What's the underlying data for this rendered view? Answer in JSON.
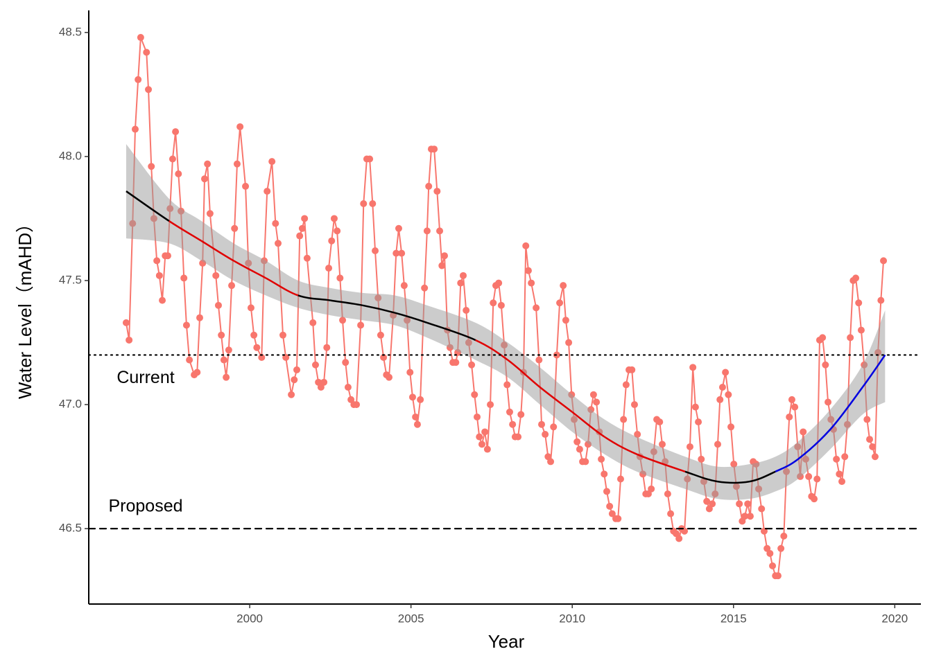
{
  "chart_data": {
    "type": "line",
    "x_label": "Year",
    "y_label": "Water Level（mAHD）",
    "color": "#F8766D",
    "xlim": [
      1995.01,
      2020.81
    ],
    "ylim": [
      46.196,
      48.589
    ],
    "xticks": [
      2000,
      2005,
      2010,
      2015,
      2020
    ],
    "yticks": [
      46.5,
      {
        "value": 47,
        "label": "47.0"
      },
      47.5,
      {
        "value": 48,
        "label": "48.0"
      },
      48.5
    ],
    "x": [
      1996.17,
      1996.26,
      1996.37,
      1996.45,
      1996.54,
      1996.62,
      1996.8,
      1996.86,
      1996.95,
      1997.03,
      1997.12,
      1997.2,
      1997.29,
      1997.38,
      1997.46,
      1997.53,
      1997.61,
      1997.7,
      1997.79,
      1997.87,
      1997.96,
      1998.04,
      1998.13,
      1998.28,
      1998.37,
      1998.45,
      1998.54,
      1998.6,
      1998.69,
      1998.77,
      1998.95,
      1999.03,
      1999.12,
      1999.2,
      1999.27,
      1999.35,
      1999.44,
      1999.53,
      1999.61,
      1999.7,
      1999.87,
      1999.96,
      2000.04,
      2000.13,
      2000.22,
      2000.37,
      2000.45,
      2000.54,
      2000.69,
      2000.8,
      2000.88,
      2001.03,
      2001.12,
      2001.29,
      2001.38,
      2001.46,
      2001.55,
      2001.63,
      2001.7,
      2001.78,
      2001.96,
      2002.04,
      2002.13,
      2002.21,
      2002.3,
      2002.39,
      2002.45,
      2002.54,
      2002.62,
      2002.71,
      2002.8,
      2002.88,
      2002.97,
      2003.05,
      2003.14,
      2003.23,
      2003.31,
      2003.44,
      2003.53,
      2003.63,
      2003.72,
      2003.81,
      2003.89,
      2003.98,
      2004.06,
      2004.15,
      2004.24,
      2004.32,
      2004.45,
      2004.54,
      2004.62,
      2004.71,
      2004.79,
      2004.88,
      2004.97,
      2005.05,
      2005.14,
      2005.2,
      2005.29,
      2005.42,
      2005.5,
      2005.55,
      2005.63,
      2005.72,
      2005.81,
      2005.89,
      2005.96,
      2006.04,
      2006.13,
      2006.21,
      2006.3,
      2006.39,
      2006.45,
      2006.54,
      2006.62,
      2006.71,
      2006.79,
      2006.88,
      2006.97,
      2007.05,
      2007.12,
      2007.2,
      2007.29,
      2007.37,
      2007.46,
      2007.55,
      2007.63,
      2007.72,
      2007.8,
      2007.89,
      2007.98,
      2008.06,
      2008.15,
      2008.23,
      2008.32,
      2008.41,
      2008.49,
      2008.56,
      2008.64,
      2008.73,
      2008.88,
      2008.97,
      2009.05,
      2009.16,
      2009.25,
      2009.33,
      2009.42,
      2009.52,
      2009.61,
      2009.72,
      2009.8,
      2009.89,
      2009.98,
      2010.06,
      2010.15,
      2010.23,
      2010.32,
      2010.41,
      2010.49,
      2010.58,
      2010.66,
      2010.75,
      2010.84,
      2010.9,
      2010.99,
      2011.07,
      2011.16,
      2011.24,
      2011.35,
      2011.42,
      2011.5,
      2011.59,
      2011.67,
      2011.76,
      2011.85,
      2011.93,
      2012.02,
      2012.1,
      2012.19,
      2012.28,
      2012.36,
      2012.45,
      2012.53,
      2012.62,
      2012.71,
      2012.79,
      2012.88,
      2012.96,
      2013.05,
      2013.14,
      2013.22,
      2013.31,
      2013.39,
      2013.48,
      2013.57,
      2013.65,
      2013.74,
      2013.82,
      2013.91,
      2014,
      2014.08,
      2014.17,
      2014.25,
      2014.34,
      2014.43,
      2014.51,
      2014.58,
      2014.66,
      2014.75,
      2014.84,
      2014.92,
      2015.01,
      2015.09,
      2015.18,
      2015.27,
      2015.35,
      2015.44,
      2015.52,
      2015.61,
      2015.7,
      2015.78,
      2015.87,
      2015.95,
      2016.04,
      2016.13,
      2016.21,
      2016.3,
      2016.38,
      2016.47,
      2016.56,
      2016.64,
      2016.73,
      2016.81,
      2016.9,
      2016.99,
      2017.07,
      2017.16,
      2017.24,
      2017.33,
      2017.42,
      2017.5,
      2017.59,
      2017.67,
      2017.76,
      2017.85,
      2017.93,
      2018.02,
      2018.1,
      2018.19,
      2018.28,
      2018.36,
      2018.45,
      2018.53,
      2018.62,
      2018.71,
      2018.79,
      2018.88,
      2018.96,
      2019.05,
      2019.14,
      2019.22,
      2019.31,
      2019.39,
      2019.48,
      2019.57,
      2019.65
    ],
    "values": [
      47.33,
      47.26,
      47.73,
      48.11,
      48.31,
      48.48,
      48.42,
      48.27,
      47.96,
      47.75,
      47.58,
      47.52,
      47.42,
      47.6,
      47.6,
      47.79,
      47.99,
      48.1,
      47.93,
      47.78,
      47.51,
      47.32,
      47.18,
      47.12,
      47.13,
      47.35,
      47.57,
      47.91,
      47.97,
      47.77,
      47.52,
      47.4,
      47.28,
      47.18,
      47.11,
      47.22,
      47.48,
      47.71,
      47.97,
      48.12,
      47.88,
      47.57,
      47.39,
      47.28,
      47.23,
      47.19,
      47.58,
      47.86,
      47.98,
      47.73,
      47.65,
      47.28,
      47.19,
      47.04,
      47.1,
      47.14,
      47.68,
      47.71,
      47.75,
      47.59,
      47.33,
      47.16,
      47.09,
      47.07,
      47.09,
      47.23,
      47.55,
      47.66,
      47.75,
      47.7,
      47.51,
      47.34,
      47.17,
      47.07,
      47.02,
      47.0,
      47.0,
      47.32,
      47.81,
      47.99,
      47.99,
      47.81,
      47.62,
      47.43,
      47.28,
      47.19,
      47.12,
      47.11,
      47.36,
      47.61,
      47.71,
      47.61,
      47.48,
      47.34,
      47.13,
      47.03,
      46.95,
      46.92,
      47.02,
      47.47,
      47.7,
      47.88,
      48.03,
      48.03,
      47.86,
      47.7,
      47.56,
      47.6,
      47.3,
      47.23,
      47.17,
      47.17,
      47.21,
      47.49,
      47.52,
      47.38,
      47.25,
      47.16,
      47.04,
      46.95,
      46.87,
      46.84,
      46.89,
      46.82,
      47.0,
      47.41,
      47.48,
      47.49,
      47.4,
      47.24,
      47.08,
      46.97,
      46.92,
      46.87,
      46.87,
      46.96,
      47.13,
      47.64,
      47.54,
      47.49,
      47.39,
      47.18,
      46.92,
      46.88,
      46.79,
      46.77,
      46.91,
      47.2,
      47.41,
      47.48,
      47.34,
      47.25,
      47.04,
      46.94,
      46.85,
      46.82,
      46.77,
      46.77,
      46.84,
      46.98,
      47.04,
      47.01,
      46.89,
      46.78,
      46.72,
      46.65,
      46.59,
      46.56,
      46.54,
      46.54,
      46.7,
      46.94,
      47.08,
      47.14,
      47.14,
      47.0,
      46.88,
      46.79,
      46.72,
      46.64,
      46.64,
      46.66,
      46.81,
      46.94,
      46.93,
      46.84,
      46.77,
      46.64,
      46.56,
      46.49,
      46.48,
      46.46,
      46.5,
      46.49,
      46.7,
      46.83,
      47.15,
      46.99,
      46.93,
      46.78,
      46.69,
      46.61,
      46.58,
      46.6,
      46.64,
      46.84,
      47.02,
      47.07,
      47.13,
      47.04,
      46.91,
      46.76,
      46.67,
      46.6,
      46.53,
      46.55,
      46.6,
      46.55,
      46.77,
      46.76,
      46.66,
      46.58,
      46.49,
      46.42,
      46.4,
      46.35,
      46.31,
      46.31,
      46.42,
      46.47,
      46.73,
      46.95,
      47.02,
      46.99,
      46.83,
      46.71,
      46.89,
      46.78,
      46.71,
      46.63,
      46.62,
      46.7,
      47.26,
      47.27,
      47.16,
      47.01,
      46.94,
      46.9,
      46.78,
      46.72,
      46.69,
      46.79,
      46.92,
      47.27,
      47.5,
      47.51,
      47.41,
      47.3,
      47.16,
      46.94,
      46.86,
      46.83,
      46.79,
      47.21,
      47.42,
      47.58
    ],
    "trend": {
      "band_color": "#999999",
      "x": [
        1996.17,
        1997.5,
        1998.5,
        1999.5,
        2000.5,
        2001.5,
        2002.5,
        2003.5,
        2004.5,
        2005.5,
        2007,
        2008,
        2009,
        2010,
        2011,
        2012,
        2013.5,
        2014.5,
        2015.5,
        2016.3,
        2017,
        2018,
        2019,
        2019.7
      ],
      "values": [
        47.86,
        47.74,
        47.66,
        47.58,
        47.51,
        47.44,
        47.42,
        47.4,
        47.37,
        47.33,
        47.26,
        47.18,
        47.07,
        46.97,
        46.87,
        46.8,
        46.73,
        46.69,
        46.69,
        46.73,
        46.78,
        46.9,
        47.07,
        47.2
      ],
      "lower": [
        47.67,
        47.65,
        47.58,
        47.5,
        47.44,
        47.39,
        47.36,
        47.34,
        47.32,
        47.27,
        47.18,
        47.11,
        47.0,
        46.89,
        46.8,
        46.73,
        46.66,
        46.62,
        46.62,
        46.65,
        46.7,
        46.82,
        46.96,
        47.01
      ],
      "upper": [
        48.05,
        47.83,
        47.74,
        47.65,
        47.58,
        47.5,
        47.47,
        47.45,
        47.44,
        47.4,
        47.33,
        47.25,
        47.15,
        47.04,
        46.94,
        46.87,
        46.79,
        46.75,
        46.76,
        46.79,
        46.85,
        46.98,
        47.16,
        47.38
      ],
      "segment_colors": [
        "#000000",
        "#e00000",
        "#e00000",
        "#e00000",
        "#e00000",
        "#000000",
        "#000000",
        "#000000",
        "#000000",
        "#000000",
        "#e00000",
        "#e00000",
        "#e00000",
        "#e00000",
        "#e00000",
        "#e00000",
        "#000000",
        "#000000",
        "#000000",
        "#0000e0",
        "#0000e0",
        "#0000e0",
        "#0000e0"
      ]
    },
    "reference_lines": [
      {
        "value": 47.2,
        "label": "Current",
        "style": "dotted"
      },
      {
        "value": 46.5,
        "label": "Proposed",
        "style": "dashed"
      }
    ]
  }
}
